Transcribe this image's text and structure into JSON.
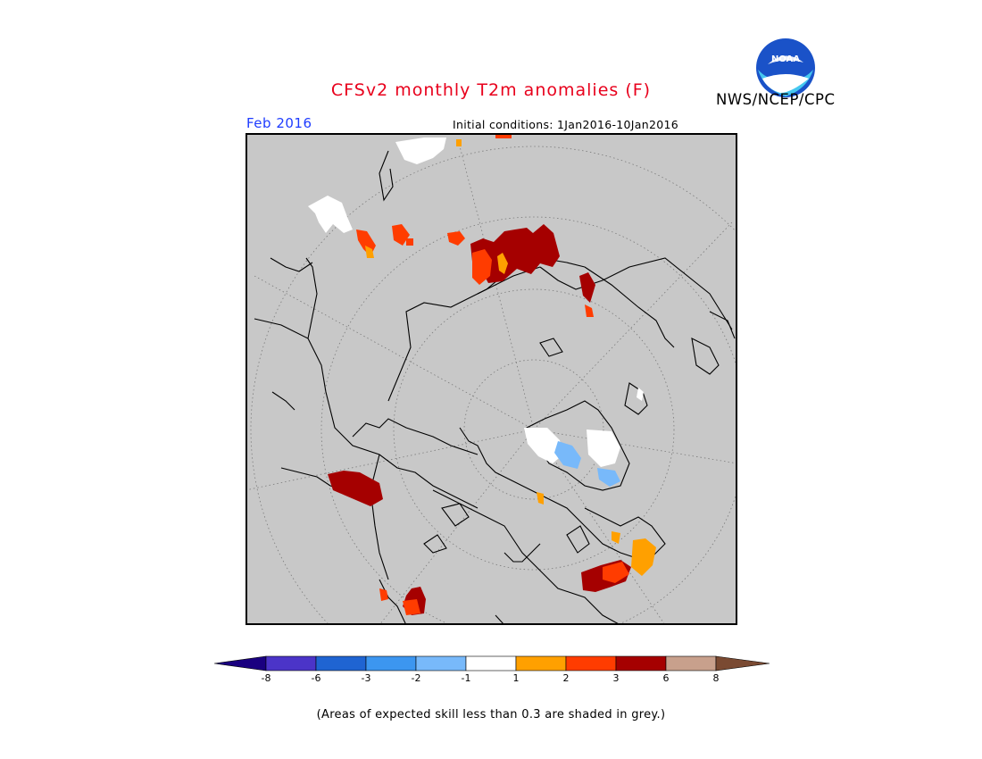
{
  "header": {
    "title": "CFSv2 monthly T2m anomalies (F)",
    "credit": "NWS/NCEP/CPC",
    "logo_text": "NOAA"
  },
  "map": {
    "valid_month": "Feb 2016",
    "initial_conditions": "Initial conditions: 1Jan2016-10Jan2016",
    "projection": "north-polar-stereographic",
    "background_color": "#c8c8c8"
  },
  "colorbar": {
    "colors": [
      "#1a0080",
      "#4b34c8",
      "#1f64d2",
      "#3c96f0",
      "#78b9fa",
      "#ffffff",
      "#ffa000",
      "#ff3c00",
      "#a50000",
      "#c8a08c",
      "#7a4a32"
    ],
    "tick_labels": [
      "-8",
      "-6",
      "-3",
      "-2",
      "-1",
      "1",
      "2",
      "3",
      "6",
      "8"
    ]
  },
  "footnote": "(Areas of expected skill less than 0.3 are shaded in grey.)"
}
